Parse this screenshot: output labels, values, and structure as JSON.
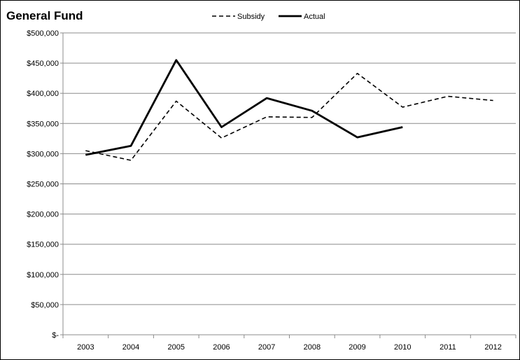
{
  "chart_data": {
    "type": "line",
    "title": "General Fund",
    "xlabel": "",
    "ylabel": "",
    "categories": [
      "2003",
      "2004",
      "2005",
      "2006",
      "2007",
      "2008",
      "2009",
      "2010",
      "2011",
      "2012"
    ],
    "series": [
      {
        "name": "Subsidy",
        "style": "dashed",
        "color": "#000000",
        "values": [
          305000,
          289000,
          387000,
          326000,
          361000,
          360000,
          433000,
          377000,
          395000,
          388000
        ]
      },
      {
        "name": "Actual",
        "style": "solid",
        "color": "#000000",
        "values": [
          298000,
          313000,
          455000,
          344000,
          392000,
          371000,
          327000,
          344000,
          null,
          null
        ]
      }
    ],
    "ylim": [
      0,
      500000
    ],
    "yticks": [
      0,
      50000,
      100000,
      150000,
      200000,
      250000,
      300000,
      350000,
      400000,
      450000,
      500000
    ],
    "ytick_labels": [
      "$-",
      "$50,000",
      "$100,000",
      "$150,000",
      "$200,000",
      "$250,000",
      "$300,000",
      "$350,000",
      "$400,000",
      "$450,000",
      "$500,000"
    ],
    "grid": true,
    "legend_position": "top-center"
  }
}
